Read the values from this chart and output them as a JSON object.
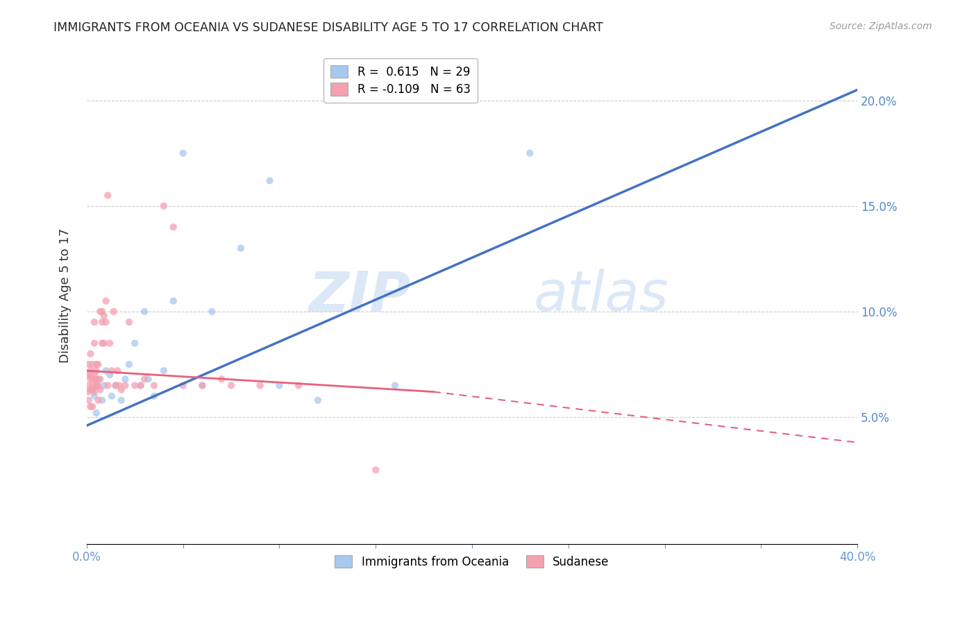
{
  "title": "IMMIGRANTS FROM OCEANIA VS SUDANESE DISABILITY AGE 5 TO 17 CORRELATION CHART",
  "source": "Source: ZipAtlas.com",
  "ylabel": "Disability Age 5 to 17",
  "ytick_labels": [
    "5.0%",
    "10.0%",
    "15.0%",
    "20.0%"
  ],
  "ytick_values": [
    0.05,
    0.1,
    0.15,
    0.2
  ],
  "xtick_values": [
    0.0,
    0.05,
    0.1,
    0.15,
    0.2,
    0.25,
    0.3,
    0.35,
    0.4
  ],
  "xlim": [
    0.0,
    0.4
  ],
  "ylim": [
    -0.01,
    0.225
  ],
  "legend1_label": "R =  0.615   N = 29",
  "legend2_label": "R = -0.109   N = 63",
  "legend1_color": "#a8c8f0",
  "legend2_color": "#f4a0b0",
  "line1_color": "#4472c4",
  "line2_color": "#e8607a",
  "watermark_zip": "ZIP",
  "watermark_atlas": "atlas",
  "watermark_color": "#dce8f8",
  "scatter1_color": "#a8c8f0",
  "scatter2_color": "#f4a0b0",
  "scatter_alpha": 0.75,
  "scatter_size": 55,
  "oceania_x": [
    0.003,
    0.004,
    0.005,
    0.006,
    0.008,
    0.009,
    0.01,
    0.012,
    0.013,
    0.015,
    0.018,
    0.02,
    0.022,
    0.025,
    0.028,
    0.03,
    0.032,
    0.035,
    0.04,
    0.045,
    0.05,
    0.06,
    0.065,
    0.08,
    0.095,
    0.1,
    0.12,
    0.16,
    0.23
  ],
  "oceania_y": [
    0.063,
    0.06,
    0.052,
    0.068,
    0.058,
    0.065,
    0.072,
    0.07,
    0.06,
    0.065,
    0.058,
    0.068,
    0.075,
    0.085,
    0.065,
    0.1,
    0.068,
    0.06,
    0.072,
    0.105,
    0.175,
    0.065,
    0.1,
    0.13,
    0.162,
    0.065,
    0.058,
    0.065,
    0.175
  ],
  "sudanese_x": [
    0.001,
    0.001,
    0.001,
    0.001,
    0.001,
    0.002,
    0.002,
    0.002,
    0.002,
    0.002,
    0.002,
    0.003,
    0.003,
    0.003,
    0.003,
    0.003,
    0.004,
    0.004,
    0.004,
    0.004,
    0.004,
    0.005,
    0.005,
    0.005,
    0.005,
    0.005,
    0.006,
    0.006,
    0.006,
    0.007,
    0.007,
    0.007,
    0.008,
    0.008,
    0.008,
    0.009,
    0.009,
    0.01,
    0.01,
    0.011,
    0.011,
    0.012,
    0.013,
    0.014,
    0.015,
    0.016,
    0.017,
    0.018,
    0.02,
    0.022,
    0.025,
    0.028,
    0.03,
    0.035,
    0.04,
    0.045,
    0.05,
    0.06,
    0.07,
    0.075,
    0.09,
    0.11,
    0.15
  ],
  "sudanese_y": [
    0.065,
    0.07,
    0.062,
    0.075,
    0.058,
    0.068,
    0.072,
    0.063,
    0.055,
    0.07,
    0.08,
    0.075,
    0.063,
    0.055,
    0.068,
    0.065,
    0.07,
    0.068,
    0.062,
    0.095,
    0.085,
    0.072,
    0.065,
    0.068,
    0.065,
    0.075,
    0.058,
    0.075,
    0.065,
    0.063,
    0.068,
    0.1,
    0.1,
    0.095,
    0.085,
    0.085,
    0.098,
    0.105,
    0.095,
    0.155,
    0.065,
    0.085,
    0.072,
    0.1,
    0.065,
    0.072,
    0.065,
    0.063,
    0.065,
    0.095,
    0.065,
    0.065,
    0.068,
    0.065,
    0.15,
    0.14,
    0.065,
    0.065,
    0.068,
    0.065,
    0.065,
    0.065,
    0.025
  ],
  "line1_y_start": 0.046,
  "line1_y_end": 0.205,
  "line2_y_start": 0.072,
  "line2_y_end": 0.055,
  "line2_solid_end": 0.18,
  "line2_dashed_start": 0.18,
  "line2_dashed_end": 0.4,
  "line2_y_at_solid_end": 0.062,
  "line2_y_at_dashed_end": 0.038
}
